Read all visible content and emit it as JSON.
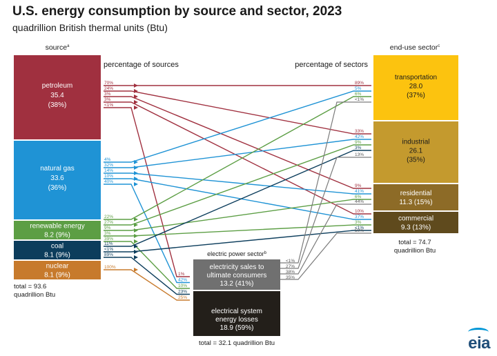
{
  "title": "U.S. energy consumption by source and sector, 2023",
  "subtitle": "quadrillion British thermal units (Btu)",
  "headers": {
    "source": "source",
    "source_sup": "a",
    "pct_sources": "percentage of sources",
    "pct_sectors": "percentage of sectors",
    "end_use": "end-use sector",
    "end_use_sup": "c",
    "electric": "electric power sector",
    "electric_sup": "b"
  },
  "sources": [
    {
      "id": "petroleum",
      "name": "petroleum",
      "value": "35.4",
      "pct": "(38%)",
      "color": "#a0303f",
      "flows": [
        {
          "to": "transportation",
          "label": "70%",
          "end": "89%"
        },
        {
          "to": "industrial",
          "label": "24%",
          "end": "33%"
        },
        {
          "to": "residential",
          "label": "3%",
          "end": "9%"
        },
        {
          "to": "commercial",
          "label": "3%",
          "end": "10%"
        },
        {
          "to": "electric",
          "label": "<1%",
          "end": "1%"
        }
      ]
    },
    {
      "id": "natgas",
      "name": "natural gas",
      "value": "33.6",
      "pct": "(36%)",
      "color": "#1f93d5",
      "flows": [
        {
          "to": "transportation",
          "label": "4%",
          "end": "5%"
        },
        {
          "to": "industrial",
          "label": "32%",
          "end": "42%"
        },
        {
          "to": "residential",
          "label": "14%",
          "end": "41%"
        },
        {
          "to": "commercial",
          "label": "10%",
          "end": "37%"
        },
        {
          "to": "electric",
          "label": "40%",
          "end": "42%"
        }
      ]
    },
    {
      "id": "renewable",
      "name": "renewable energy",
      "value": "8.2",
      "pct": "(9%)",
      "color": "#5c9e44",
      "flows": [
        {
          "to": "transportation",
          "label": "22%",
          "end": "6%"
        },
        {
          "to": "industrial",
          "label": "27%",
          "end": "9%"
        },
        {
          "to": "residential",
          "label": "9%",
          "end": "6%"
        },
        {
          "to": "commercial",
          "label": "3%",
          "end": "3%"
        },
        {
          "to": "electric",
          "label": "39%",
          "end": "10%"
        }
      ]
    },
    {
      "id": "coal",
      "name": "coal",
      "value": "8.1",
      "pct": "(9%)",
      "color": "#0c3d5c",
      "flows": [
        {
          "to": "industrial",
          "label": "11%",
          "end": "3%"
        },
        {
          "to": "commercial",
          "label": "<1%",
          "end": "<1%"
        },
        {
          "to": "electric",
          "label": "89%",
          "end": "23%"
        }
      ]
    },
    {
      "id": "nuclear",
      "name": "nuclear",
      "value": "8.1",
      "pct": "(9%)",
      "color": "#c77a2c",
      "flows": [
        {
          "to": "electric",
          "label": "100%",
          "end": "25%"
        }
      ]
    }
  ],
  "source_total": "total = 93.6",
  "source_total_unit": "quadrillion Btu",
  "sectors": [
    {
      "id": "transportation",
      "name": "transportation",
      "value": "28.0",
      "pct": "(37%)",
      "color": "#fcc30f",
      "elec_in": "<1%"
    },
    {
      "id": "industrial",
      "name": "industrial",
      "value": "26.1",
      "pct": "(35%)",
      "color": "#c49a2e",
      "elec_in": "13%"
    },
    {
      "id": "residential",
      "name": "residential",
      "value": "11.3 (15%)",
      "pct": "",
      "color": "#8d6b27",
      "elec_in": "44%"
    },
    {
      "id": "commercial",
      "name": "commercial",
      "value": "9.3 (13%)",
      "pct": "",
      "color": "#5f4a1d",
      "elec_in": "50%"
    }
  ],
  "sector_total": "total = 74.7",
  "sector_total_unit": "quadrillion Btu",
  "electric": {
    "sales_label_1": "electricity sales to",
    "sales_label_2": "ultimate consumers",
    "sales_value": "13.2 (41%)",
    "losses_label_1": "electrical system",
    "losses_label_2": "energy losses",
    "losses_value": "18.9 (59%)",
    "total": "total = 32.1 quadrillion Btu",
    "out_labels": [
      "<1%",
      "27%",
      "38%",
      "35%"
    ],
    "sales_color": "#707070",
    "losses_color": "#231f1a"
  },
  "logo": "eia"
}
